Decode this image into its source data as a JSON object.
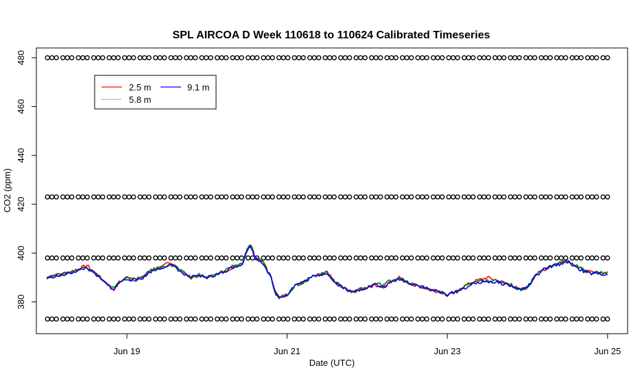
{
  "chart_data": {
    "type": "line",
    "title": "SPL AIRCOA D  Week 110618 to 110624  Calibrated Timeseries",
    "xlabel": "Date (UTC)",
    "ylabel": "CO2 (ppm)",
    "xlim_days": [
      17.87,
      25.25
    ],
    "ylim": [
      367,
      484
    ],
    "x_ticks": [
      {
        "day": 19,
        "label": "Jun 19"
      },
      {
        "day": 21,
        "label": "Jun 21"
      },
      {
        "day": 23,
        "label": "Jun 23"
      },
      {
        "day": 25,
        "label": "Jun 25"
      }
    ],
    "y_ticks": [
      {
        "value": 380,
        "label": "380"
      },
      {
        "value": 400,
        "label": "400"
      },
      {
        "value": 420,
        "label": "420"
      },
      {
        "value": 440,
        "label": "440"
      },
      {
        "value": 460,
        "label": "460"
      },
      {
        "value": 480,
        "label": "480"
      }
    ],
    "legend": {
      "placement": "top-left",
      "entries": [
        {
          "label": "2.5 m",
          "color": "#ff0000",
          "style": "solid"
        },
        {
          "label": "5.8 m",
          "color": "#008000",
          "style": "dotted"
        },
        {
          "label": "9.1 m",
          "color": "#0000ff",
          "style": "solid"
        }
      ]
    },
    "calibration_levels": [
      373,
      398,
      423,
      480
    ],
    "calibration_marker": "o",
    "calibration_range_days": [
      18.0,
      25.0
    ],
    "series_days": [
      18.0,
      18.1,
      18.2,
      18.3,
      18.4,
      18.5,
      18.6,
      18.7,
      18.8,
      18.85,
      18.9,
      19.0,
      19.1,
      19.2,
      19.3,
      19.4,
      19.5,
      19.6,
      19.7,
      19.8,
      19.9,
      20.0,
      20.1,
      20.2,
      20.3,
      20.4,
      20.45,
      20.5,
      20.55,
      20.6,
      20.7,
      20.8,
      20.85,
      20.9,
      21.0,
      21.1,
      21.2,
      21.3,
      21.4,
      21.5,
      21.6,
      21.7,
      21.8,
      21.9,
      22.0,
      22.1,
      22.2,
      22.3,
      22.4,
      22.5,
      22.6,
      22.7,
      22.8,
      22.9,
      23.0,
      23.1,
      23.2,
      23.3,
      23.4,
      23.5,
      23.6,
      23.7,
      23.8,
      23.9,
      24.0,
      24.1,
      24.2,
      24.3,
      24.4,
      24.5,
      24.6,
      24.7,
      24.8,
      24.9,
      25.0
    ],
    "series": [
      {
        "name": "2.5 m",
        "color": "#ff0000",
        "values": [
          390,
          391,
          391.5,
          392.5,
          393.5,
          395,
          392,
          389,
          386,
          385,
          388,
          390,
          389,
          390,
          393,
          394,
          395.5,
          395,
          392,
          390,
          391,
          390,
          391,
          392,
          394,
          395,
          396,
          402,
          403,
          398,
          397,
          390,
          384,
          382,
          383,
          387,
          388,
          390,
          391,
          392,
          388,
          386,
          384,
          385,
          386,
          387,
          386,
          388,
          390,
          388,
          387,
          386,
          385,
          384,
          383,
          384,
          386,
          388,
          389,
          390,
          389,
          388,
          387,
          385,
          386,
          391,
          393,
          395,
          396,
          397,
          395,
          393,
          392,
          392,
          392
        ]
      },
      {
        "name": "5.8 m",
        "color": "#008000",
        "values": [
          390,
          390.8,
          391.3,
          392.3,
          393.3,
          394.5,
          392,
          389,
          386,
          385.5,
          388,
          390,
          389.3,
          390,
          393,
          394,
          395,
          394.8,
          392,
          390,
          391,
          390,
          391,
          392.5,
          394.5,
          395.5,
          396,
          401.5,
          403,
          398,
          396.5,
          390,
          384,
          382,
          383,
          387,
          388,
          390,
          391.5,
          392,
          388,
          386,
          384,
          385,
          386,
          387.5,
          387,
          389,
          390,
          388,
          387,
          386,
          385,
          384,
          383,
          384,
          386,
          387.5,
          388.5,
          389,
          388.5,
          388,
          387,
          385,
          386,
          391,
          393.5,
          395,
          396,
          397,
          395,
          393,
          392,
          392,
          392
        ]
      },
      {
        "name": "9.1 m",
        "color": "#0000ff",
        "values": [
          390,
          390.5,
          391,
          392,
          393,
          394,
          391.5,
          388.5,
          386,
          385,
          388,
          389.5,
          389,
          390,
          392.5,
          393.5,
          395,
          394.5,
          391.5,
          390,
          390.5,
          390,
          391,
          392,
          394,
          395,
          396,
          401,
          403,
          398,
          396,
          390,
          384,
          382,
          383,
          387,
          388,
          390,
          391,
          392,
          388,
          386,
          384,
          385,
          386,
          387,
          386,
          388,
          389.5,
          388,
          387,
          386,
          385,
          384,
          383,
          384,
          385.5,
          387,
          388,
          388.5,
          388,
          387.5,
          386.5,
          385,
          386,
          390.5,
          393,
          394.5,
          395.5,
          396.5,
          394.5,
          392.5,
          391.5,
          391.5,
          391.5
        ]
      }
    ]
  }
}
